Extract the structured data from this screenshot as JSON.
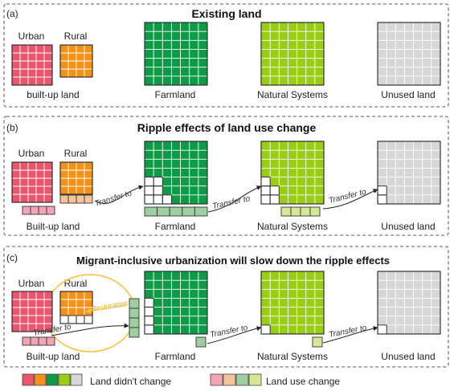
{
  "colors": {
    "urban": "#e8566d",
    "rural": "#f39219",
    "farmland": "#0e9a46",
    "natural": "#99cd16",
    "unused": "#d7d7d7",
    "urban_change": "#f2a5b4",
    "rural_change": "#f6c49b",
    "farm_change": "#9ecfa3",
    "natural_change": "#d6e896",
    "restoration": "#f5c242",
    "panel_border": "#777777"
  },
  "panels": [
    {
      "tag": "(a)",
      "title": "Existing land",
      "labels": {
        "urban": "Urban",
        "rural": "Rural",
        "builtup": "built-up land",
        "farmland": "Farmland",
        "natural": "Natural Systems",
        "unused": "Unused land"
      }
    },
    {
      "tag": "(b)",
      "title": "Ripple effects of land use change",
      "labels": {
        "urban": "Urban",
        "rural": "Rural",
        "builtup": "Built-up land",
        "farmland": "Farmland",
        "natural": "Natural Systems",
        "unused": "Unused land"
      },
      "arrows": [
        "Transfer to",
        "Transfer to",
        "Transfer to"
      ]
    },
    {
      "tag": "(c)",
      "title": "Migrant-inclusive urbanization will slow down the ripple effects",
      "labels": {
        "urban": "Urban",
        "rural": "Rural",
        "builtup": "Built-up land",
        "farmland": "Farmland",
        "natural": "Natural Systems",
        "unused": "Unused land"
      },
      "arrows": [
        "Transfer to",
        "Transfer to",
        "Transfer to"
      ],
      "restoration": "Restoration"
    }
  ],
  "legend": {
    "unchanged": "Land didn't change",
    "changed": "Land use change"
  }
}
